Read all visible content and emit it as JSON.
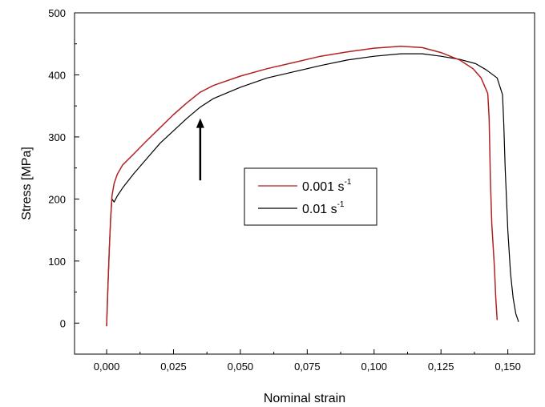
{
  "chart_data": {
    "type": "line",
    "xlabel": "Nominal strain",
    "ylabel": "Stress [MPa]",
    "xlim": [
      -0.012,
      0.16
    ],
    "ylim": [
      -50,
      500
    ],
    "xticks": [
      0.0,
      0.025,
      0.05,
      0.075,
      0.1,
      0.125,
      0.15
    ],
    "xtick_labels": [
      "0,000",
      "0,025",
      "0,050",
      "0,075",
      "0,100",
      "0,125",
      "0,150"
    ],
    "yticks": [
      0,
      100,
      200,
      300,
      400,
      500
    ],
    "ytick_labels": [
      "0",
      "100",
      "200",
      "300",
      "400",
      "500"
    ],
    "legend_position": "center-right",
    "annotation": "arrow",
    "annotation_arrow": {
      "x": 0.035,
      "y_from": 230,
      "y_to": 330
    },
    "series": [
      {
        "name": "0.001 s",
        "name_sup": "-1",
        "color": "#b22222",
        "points": [
          [
            0.0,
            -5
          ],
          [
            0.0005,
            60
          ],
          [
            0.001,
            120
          ],
          [
            0.0015,
            170
          ],
          [
            0.002,
            205
          ],
          [
            0.0028,
            225
          ],
          [
            0.004,
            240
          ],
          [
            0.006,
            255
          ],
          [
            0.01,
            272
          ],
          [
            0.015,
            294
          ],
          [
            0.02,
            315
          ],
          [
            0.025,
            336
          ],
          [
            0.03,
            355
          ],
          [
            0.035,
            372
          ],
          [
            0.04,
            383
          ],
          [
            0.05,
            398
          ],
          [
            0.06,
            410
          ],
          [
            0.07,
            420
          ],
          [
            0.08,
            430
          ],
          [
            0.09,
            437
          ],
          [
            0.1,
            443
          ],
          [
            0.11,
            446
          ],
          [
            0.118,
            444
          ],
          [
            0.125,
            436
          ],
          [
            0.132,
            424
          ],
          [
            0.137,
            410
          ],
          [
            0.14,
            395
          ],
          [
            0.1425,
            370
          ],
          [
            0.143,
            330
          ],
          [
            0.1435,
            230
          ],
          [
            0.144,
            160
          ],
          [
            0.145,
            90
          ],
          [
            0.1455,
            40
          ],
          [
            0.146,
            5
          ]
        ]
      },
      {
        "name": "0.01 s",
        "name_sup": "-1",
        "color": "#000000",
        "points": [
          [
            0.0,
            -5
          ],
          [
            0.0005,
            60
          ],
          [
            0.001,
            120
          ],
          [
            0.0015,
            170
          ],
          [
            0.002,
            200
          ],
          [
            0.0028,
            195
          ],
          [
            0.004,
            205
          ],
          [
            0.006,
            218
          ],
          [
            0.01,
            240
          ],
          [
            0.015,
            265
          ],
          [
            0.02,
            290
          ],
          [
            0.025,
            310
          ],
          [
            0.03,
            330
          ],
          [
            0.035,
            348
          ],
          [
            0.04,
            362
          ],
          [
            0.05,
            380
          ],
          [
            0.06,
            395
          ],
          [
            0.07,
            405
          ],
          [
            0.08,
            415
          ],
          [
            0.09,
            424
          ],
          [
            0.1,
            430
          ],
          [
            0.11,
            434
          ],
          [
            0.118,
            434
          ],
          [
            0.125,
            430
          ],
          [
            0.132,
            425
          ],
          [
            0.138,
            418
          ],
          [
            0.142,
            408
          ],
          [
            0.146,
            395
          ],
          [
            0.148,
            368
          ],
          [
            0.1485,
            320
          ],
          [
            0.149,
            250
          ],
          [
            0.15,
            150
          ],
          [
            0.151,
            80
          ],
          [
            0.152,
            40
          ],
          [
            0.153,
            15
          ],
          [
            0.154,
            2
          ]
        ]
      }
    ]
  }
}
